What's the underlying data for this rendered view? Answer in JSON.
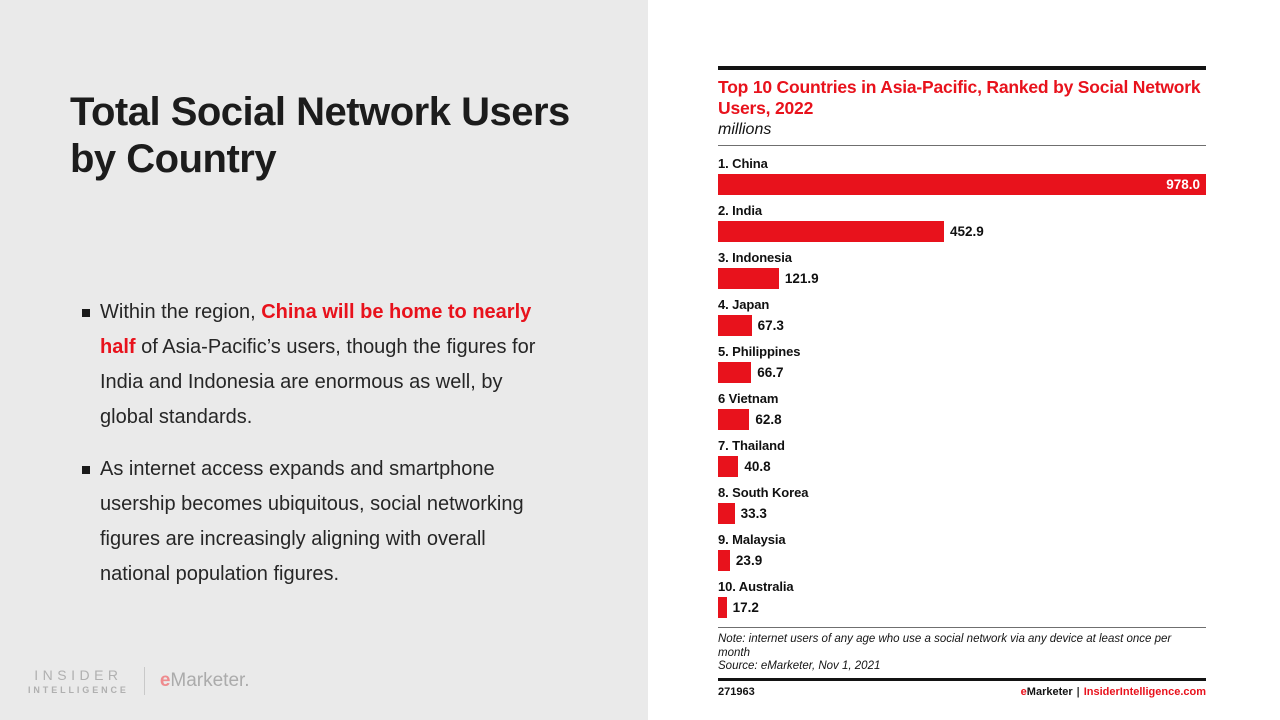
{
  "colors": {
    "accent_red": "#e8121c",
    "left_panel_bg": "#eaeaea",
    "logo_gray": "#b0b0b0",
    "logo_pink": "#ee8b8e"
  },
  "left_panel": {
    "title": "Total Social Network Users by Country",
    "bullets": [
      {
        "prefix": "Within the region, ",
        "highlight": "China will be home to nearly half",
        "suffix": " of Asia-Pacific’s users, though the figures for India and Indonesia are enormous as well, by global standards."
      },
      {
        "text": "As internet access expands and smartphone usership becomes ubiquitous, social networking figures are increasingly aligning with overall national population figures."
      }
    ],
    "brand": {
      "insider": "INSIDER",
      "intelligence": "INTELLIGENCE",
      "emarketer_e": "e",
      "emarketer_rest": "Marketer."
    }
  },
  "chart": {
    "note": "Note: internet users of any age who use a social network via any device at least once per month",
    "source": "Source: eMarketer, Nov 1, 2021",
    "footer_id": "271963",
    "footer_brand_e": "e",
    "footer_brand_rest": "Marketer",
    "footer_sep": "|",
    "footer_site": "InsiderIntelligence.com"
  },
  "chart_data": {
    "type": "bar",
    "orientation": "horizontal",
    "title": "Top 10 Countries in Asia-Pacific, Ranked by Social Network Users, 2022",
    "subtitle": "millions",
    "categories": [
      "1. China",
      "2. India",
      "3. Indonesia",
      "4. Japan",
      "5. Philippines",
      "6 Vietnam",
      "7. Thailand",
      "8. South Korea",
      "9. Malaysia",
      "10. Australia"
    ],
    "values": [
      978.0,
      452.9,
      121.9,
      67.3,
      66.7,
      62.8,
      40.8,
      33.3,
      23.9,
      17.2
    ],
    "value_labels": [
      "978.0",
      "452.9",
      "121.9",
      "67.3",
      "66.7",
      "62.8",
      "40.8",
      "33.3",
      "23.9",
      "17.2"
    ],
    "xlim": [
      0,
      978
    ],
    "bar_color": "#e8121c",
    "grid": false,
    "legend": false
  }
}
